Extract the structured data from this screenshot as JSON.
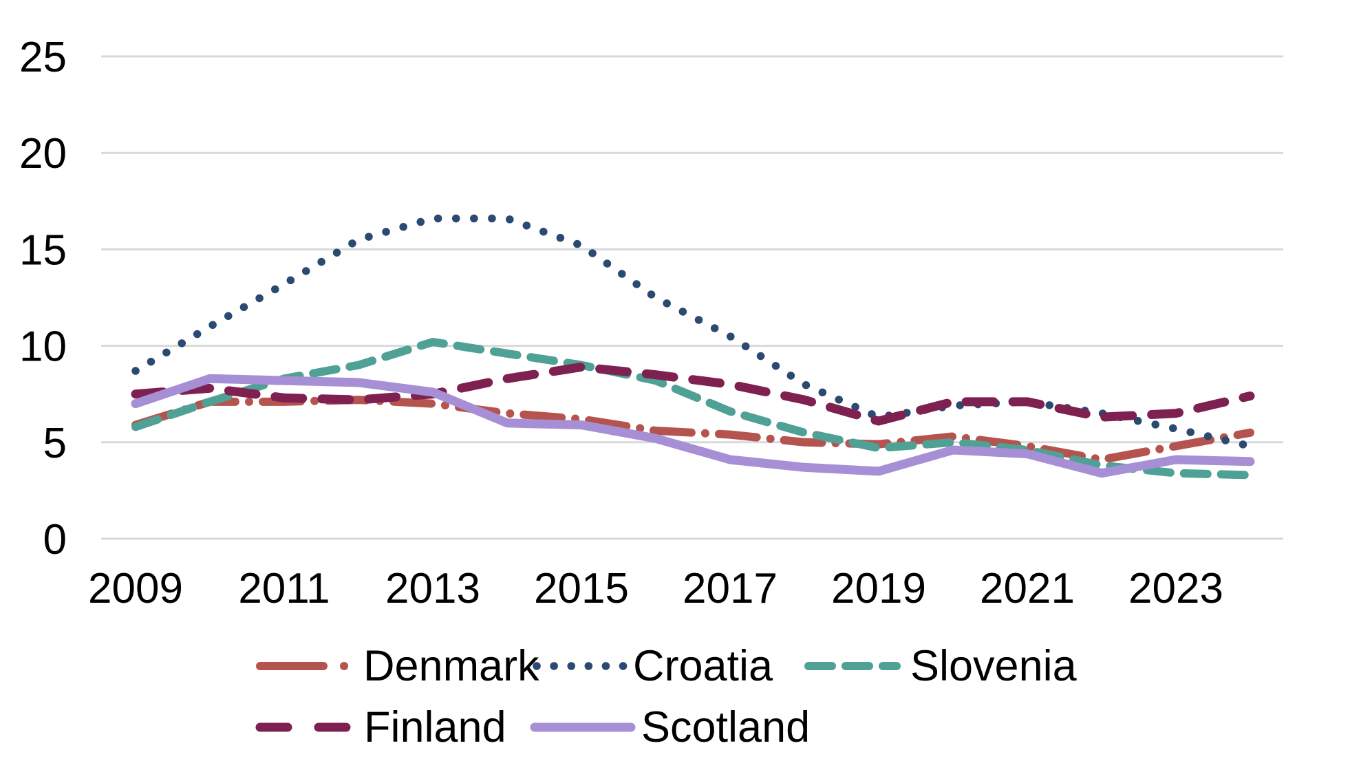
{
  "chart_data": {
    "type": "line",
    "title": "",
    "xlabel": "",
    "ylabel": "",
    "x": [
      2009,
      2010,
      2011,
      2012,
      2013,
      2014,
      2015,
      2016,
      2017,
      2018,
      2019,
      2020,
      2021,
      2022,
      2023,
      2024
    ],
    "x_tick_labels": [
      "2009",
      "2011",
      "2013",
      "2015",
      "2017",
      "2019",
      "2021",
      "2023"
    ],
    "y_ticks": [
      "0",
      "5",
      "10",
      "15",
      "20",
      "25"
    ],
    "ylim": [
      0,
      25
    ],
    "grid": true,
    "legend_position": "bottom",
    "series": [
      {
        "name": "Denmark",
        "color": "#b5544f",
        "dash": "long-dash-dot",
        "values": [
          5.9,
          7.1,
          7.1,
          7.2,
          7.0,
          6.5,
          6.2,
          5.6,
          5.4,
          5.0,
          4.9,
          5.3,
          4.8,
          4.1,
          4.8,
          5.5
        ]
      },
      {
        "name": "Croatia",
        "color": "#2b4a72",
        "dash": "dotted",
        "values": [
          8.7,
          11.0,
          13.2,
          15.5,
          16.6,
          16.6,
          15.2,
          12.5,
          10.5,
          8.0,
          6.3,
          6.9,
          7.1,
          6.5,
          5.7,
          4.8
        ]
      },
      {
        "name": "Slovenia",
        "color": "#4fa095",
        "dash": "dash",
        "values": [
          5.8,
          7.1,
          8.3,
          9.0,
          10.2,
          9.6,
          9.0,
          8.2,
          6.6,
          5.5,
          4.7,
          5.0,
          4.6,
          3.8,
          3.4,
          3.3
        ]
      },
      {
        "name": "Finland",
        "color": "#7e2150",
        "dash": "sparse-dash",
        "values": [
          7.5,
          7.8,
          7.3,
          7.2,
          7.5,
          8.3,
          8.9,
          8.5,
          8.0,
          7.2,
          6.1,
          7.1,
          7.1,
          6.3,
          6.5,
          7.4
        ]
      },
      {
        "name": "Scotland",
        "color": "#a78fd6",
        "dash": "solid",
        "values": [
          7.0,
          8.3,
          8.2,
          8.1,
          7.6,
          6.0,
          5.9,
          5.2,
          4.1,
          3.7,
          3.5,
          4.6,
          4.4,
          3.4,
          4.1,
          4.0
        ]
      }
    ],
    "style": {
      "grid_color": "#d9d9d9",
      "text_color": "#000000",
      "background": "#ffffff"
    }
  }
}
